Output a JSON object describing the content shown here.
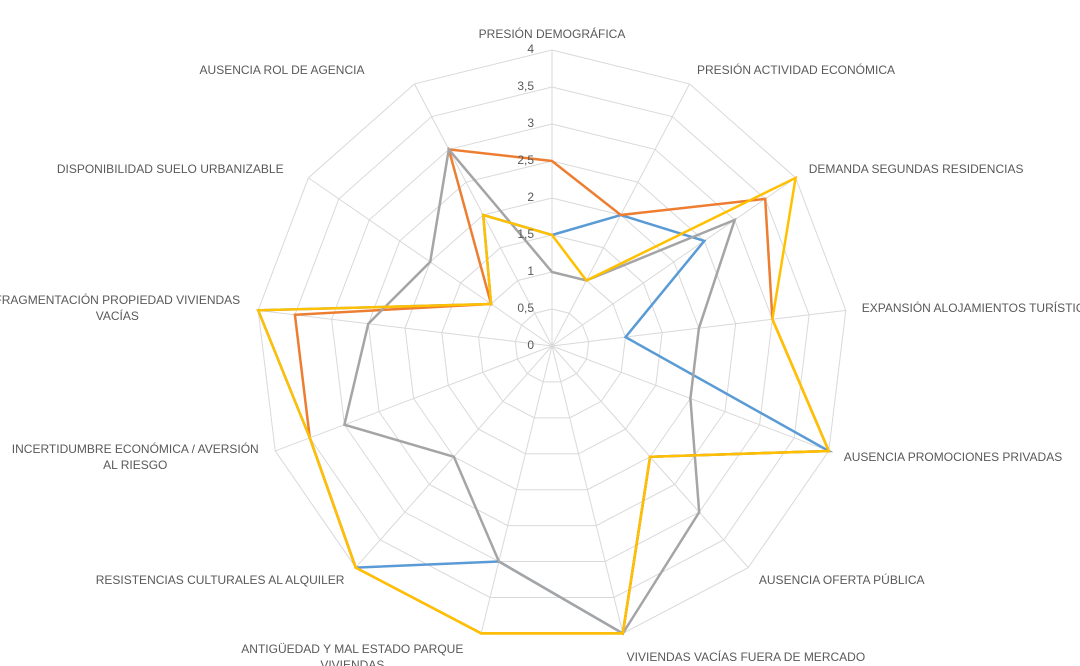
{
  "chart_data": {
    "type": "radar",
    "categories": [
      "PRESIÓN DEMOGRÁFICA",
      "PRESIÓN ACTIVIDAD ECONÓMICA",
      "DEMANDA SEGUNDAS RESIDENCIAS",
      "EXPANSIÓN ALOJAMIENTOS TURÍSTICOS",
      "AUSENCIA PROMOCIONES PRIVADAS",
      "AUSENCIA OFERTA PÚBLICA",
      "VIVIENDAS VACÍAS FUERA DE MERCADO",
      "ANTIGÜEDAD Y MAL ESTADO PARQUE VIVIENDAS",
      "RESISTENCIAS CULTURALES AL ALQUILER",
      "INCERTIDUMBRE ECONÓMICA / AVERSIÓN AL RIESGO",
      "FRAGMENTACIÓN PROPIEDAD VIVIENDAS VACÍAS",
      "DISPONIBILIDAD SUELO URBANIZABLE",
      "AUSENCIA ROL DE AGENCIA"
    ],
    "series": [
      {
        "color": "#5b9bd5",
        "values": [
          1.5,
          2,
          2.5,
          1,
          4,
          2,
          4,
          3,
          4,
          3.5,
          4,
          1,
          2
        ]
      },
      {
        "color": "#ed7d31",
        "values": [
          2.5,
          2,
          3.5,
          3,
          4,
          2,
          4,
          4,
          4,
          3.5,
          3.5,
          1,
          3
        ]
      },
      {
        "color": "#a5a5a5",
        "values": [
          1,
          1,
          3,
          2,
          2,
          3,
          4,
          3,
          2,
          3,
          2.5,
          2,
          3
        ]
      },
      {
        "color": "#ffc000",
        "values": [
          1.5,
          1,
          4,
          3,
          4,
          2,
          4,
          4,
          4,
          3.5,
          4,
          1,
          2
        ]
      }
    ],
    "ylim": [
      0,
      4
    ],
    "yticks": [
      0,
      {
        "value": 0.5,
        "label": "0,5"
      },
      1,
      {
        "value": 1.5,
        "label": "1,5"
      },
      2,
      {
        "value": 2.5,
        "label": "2,5"
      },
      3,
      {
        "value": 3.5,
        "label": "3,5"
      },
      4
    ],
    "grid": true
  }
}
